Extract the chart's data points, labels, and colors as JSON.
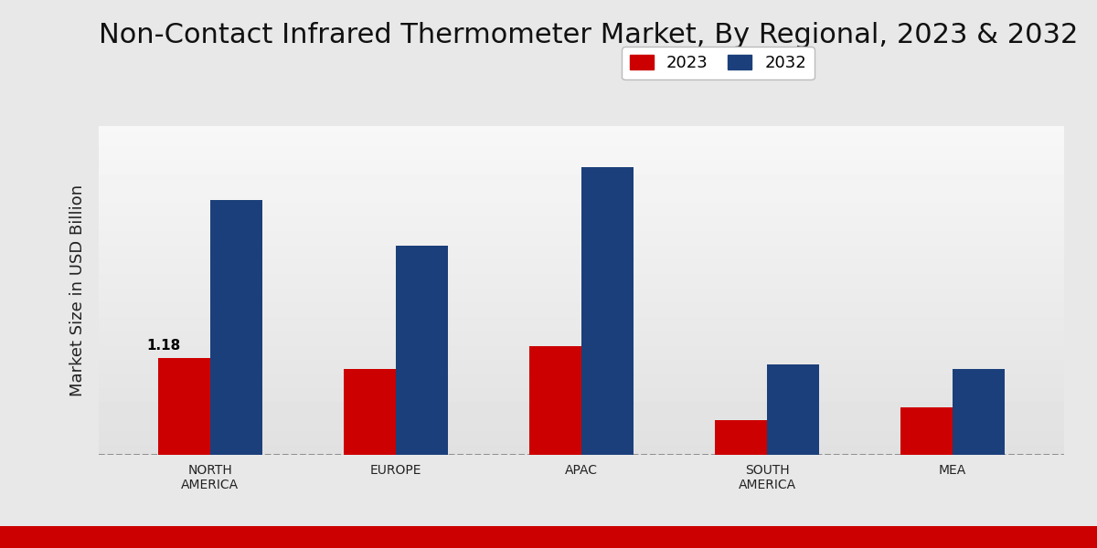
{
  "title": "Non-Contact Infrared Thermometer Market, By Regional, 2023 & 2032",
  "ylabel": "Market Size in USD Billion",
  "categories": [
    "NORTH\nAMERICA",
    "EUROPE",
    "APAC",
    "SOUTH\nAMERICA",
    "MEA"
  ],
  "values_2023": [
    1.18,
    1.05,
    1.32,
    0.42,
    0.58
  ],
  "values_2032": [
    3.1,
    2.55,
    3.5,
    1.1,
    1.05
  ],
  "color_2023": "#cc0000",
  "color_2032": "#1b3f7a",
  "annotation_text": "1.18",
  "bar_width": 0.28,
  "legend_labels": [
    "2023",
    "2032"
  ],
  "ylim_min": 0.0,
  "ylim_max": 4.0,
  "title_fontsize": 22,
  "axis_label_fontsize": 13,
  "tick_label_fontsize": 10,
  "bottom_strip_color": "#cc0000",
  "annotation_fontsize": 11,
  "legend_fontsize": 13
}
